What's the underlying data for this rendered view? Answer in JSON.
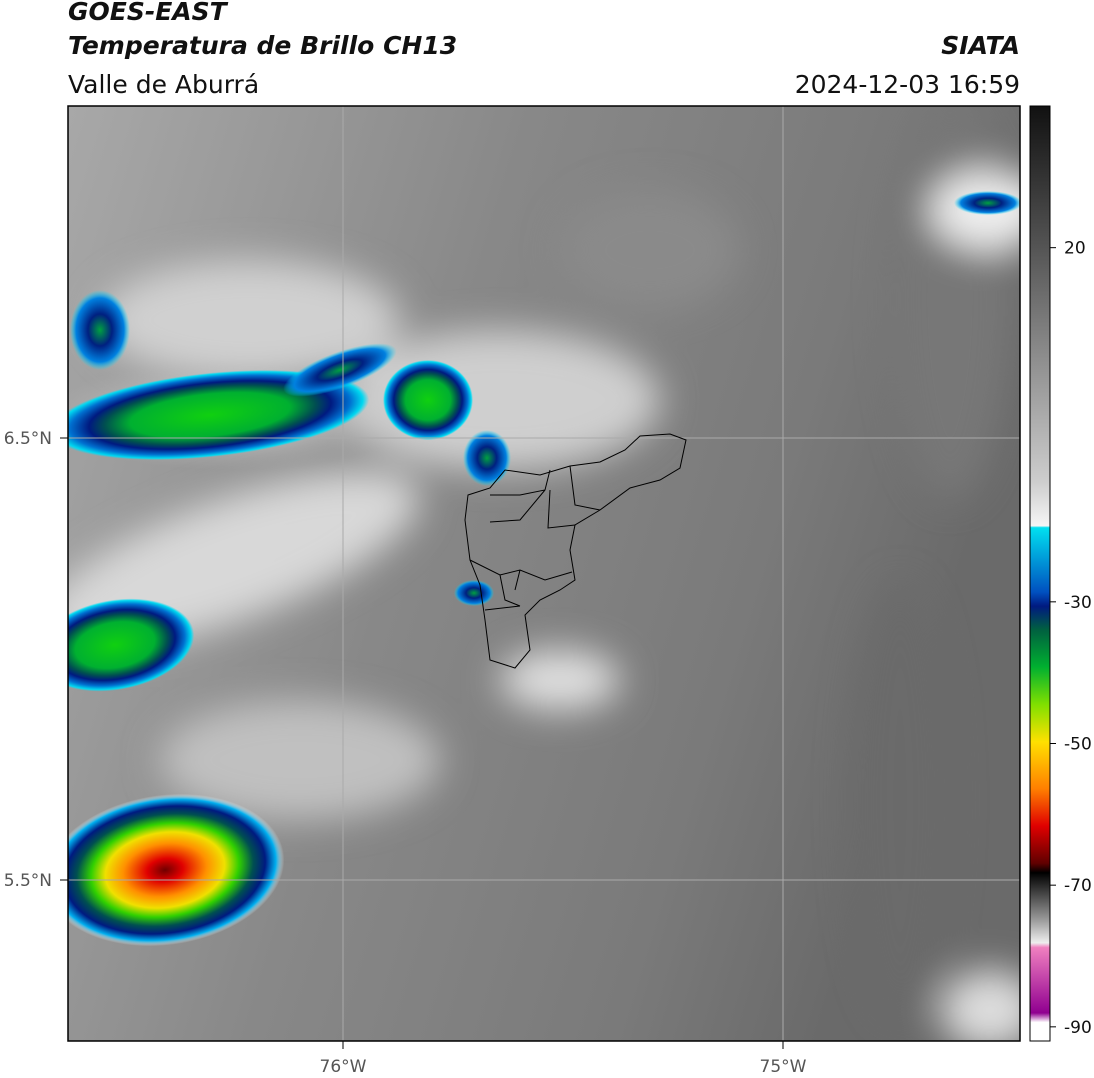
{
  "header": {
    "satellite": "GOES-EAST",
    "product": "Temperatura de Brillo CH13",
    "region": "Valle de Aburrá",
    "source": "SIATA",
    "datetime": "2024-12-03 16:59"
  },
  "map": {
    "lat_labels": [
      "6.5°N",
      "5.5°N"
    ],
    "lon_labels": [
      "76°W",
      "75°W"
    ]
  },
  "colorbar": {
    "lim": [
      -92,
      40
    ],
    "ticks": [
      20,
      -30,
      -50,
      -70,
      -90
    ]
  }
}
